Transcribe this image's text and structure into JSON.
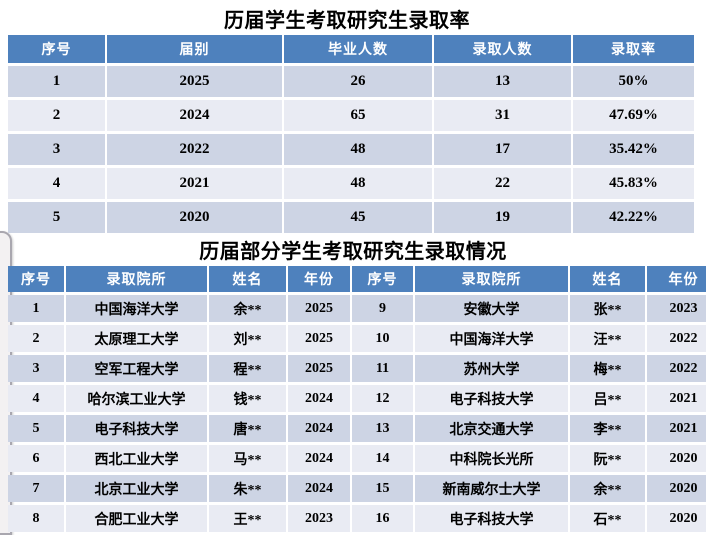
{
  "colors": {
    "header_bg": "#4e81bd",
    "band_dark": "#cdd4e4",
    "band_light": "#e9ebf3",
    "header_text": "#ffffff",
    "body_text": "#000000"
  },
  "table1": {
    "title": "历届学生考取研究生录取率",
    "headers": [
      "序号",
      "届别",
      "毕业人数",
      "录取人数",
      "录取率"
    ],
    "rows": [
      [
        "1",
        "2025",
        "26",
        "13",
        "50%"
      ],
      [
        "2",
        "2024",
        "65",
        "31",
        "47.69%"
      ],
      [
        "3",
        "2022",
        "48",
        "17",
        "35.42%"
      ],
      [
        "4",
        "2021",
        "48",
        "22",
        "45.83%"
      ],
      [
        "5",
        "2020",
        "45",
        "19",
        "42.22%"
      ]
    ]
  },
  "table2": {
    "title": "历届部分学生考取研究生录取情况",
    "headers": [
      "序号",
      "录取院所",
      "姓名",
      "年份",
      "序号",
      "录取院所",
      "姓名",
      "年份"
    ],
    "rows": [
      [
        "1",
        "中国海洋大学",
        "余**",
        "2025",
        "9",
        "安徽大学",
        "张**",
        "2023"
      ],
      [
        "2",
        "太原理工大学",
        "刘**",
        "2025",
        "10",
        "中国海洋大学",
        "汪**",
        "2022"
      ],
      [
        "3",
        "空军工程大学",
        "程**",
        "2025",
        "11",
        "苏州大学",
        "梅**",
        "2022"
      ],
      [
        "4",
        "哈尔滨工业大学",
        "钱**",
        "2024",
        "12",
        "电子科技大学",
        "吕**",
        "2021"
      ],
      [
        "5",
        "电子科技大学",
        "唐**",
        "2024",
        "13",
        "北京交通大学",
        "李**",
        "2021"
      ],
      [
        "6",
        "西北工业大学",
        "马**",
        "2024",
        "14",
        "中科院长光所",
        "阮**",
        "2020"
      ],
      [
        "7",
        "北京工业大学",
        "朱**",
        "2024",
        "15",
        "新南威尔士大学",
        "余**",
        "2020"
      ],
      [
        "8",
        "合肥工业大学",
        "王**",
        "2023",
        "16",
        "电子科技大学",
        "石**",
        "2020"
      ]
    ]
  }
}
